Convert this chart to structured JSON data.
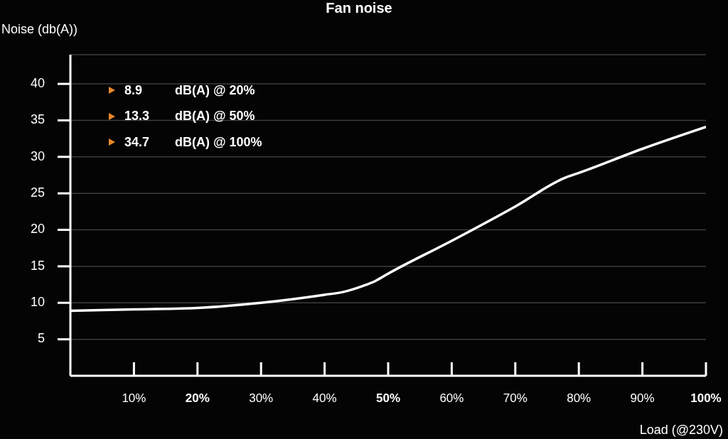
{
  "chart_data": {
    "type": "line",
    "title": "Fan noise",
    "xlabel": "Load (@230V)",
    "ylabel": "Noise (db(A))",
    "x": [
      0,
      10,
      20,
      30,
      40,
      43,
      46,
      48,
      50,
      60,
      70,
      78,
      80,
      90,
      100
    ],
    "values": [
      8.9,
      9.1,
      9.3,
      10.0,
      11.1,
      11.5,
      12.3,
      13.0,
      14.0,
      18.5,
      23.2,
      27.2,
      27.8,
      31.1,
      34.1
    ],
    "color": "#ffffff",
    "xlim": [
      0,
      100
    ],
    "xticks": [
      {
        "value": 10,
        "label": "10%"
      },
      {
        "value": 20,
        "label": "20%"
      },
      {
        "value": 30,
        "label": "30%"
      },
      {
        "value": 40,
        "label": "40%"
      },
      {
        "value": 50,
        "label": "50%"
      },
      {
        "value": 60,
        "label": "60%"
      },
      {
        "value": 70,
        "label": "70%"
      },
      {
        "value": 80,
        "label": "80%"
      },
      {
        "value": 90,
        "label": "90%"
      },
      {
        "value": 100,
        "label": "100%"
      }
    ],
    "ylim": [
      0,
      44
    ],
    "yticks": [
      5,
      10,
      15,
      20,
      25,
      30,
      35,
      40
    ],
    "grid": "y",
    "annotations": [
      "8.9 dB(A) @ 20%",
      "13.3 dB(A) @ 50%",
      "34.7 dB(A) @ 100%"
    ]
  }
}
